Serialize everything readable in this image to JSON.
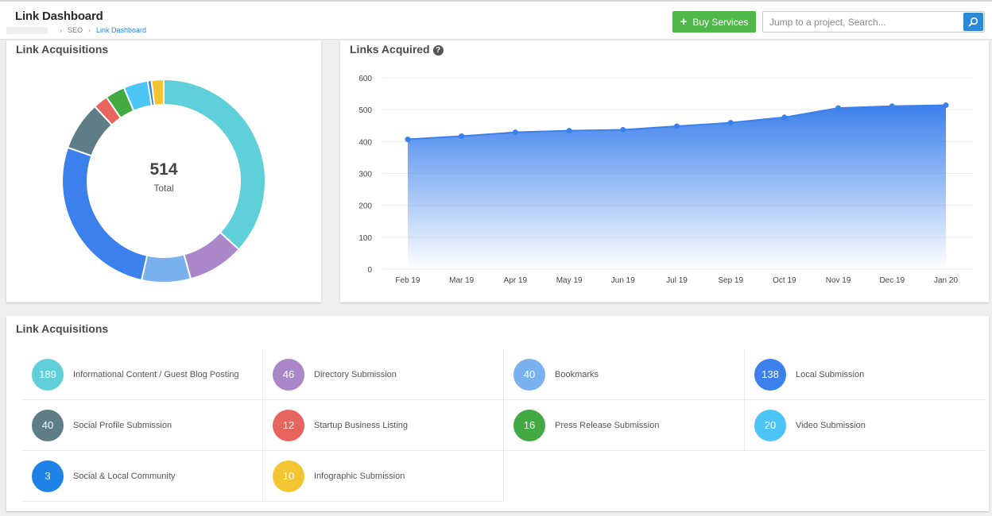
{
  "header": {
    "title": "Link Dashboard",
    "breadcrumb": [
      "SEO",
      "Link Dashboard"
    ],
    "buy_label": "Buy Services",
    "search_placeholder": "Jump to a project, Search..."
  },
  "donut_card": {
    "title": "Link Acquisitions",
    "total_value": "514",
    "total_label": "Total"
  },
  "line_card": {
    "title": "Links Acquired"
  },
  "legend_card": {
    "title": "Link Acquisitions",
    "items": [
      {
        "count": "189",
        "label": "Informational Content / Guest Blog Posting",
        "color": "#5fd0d9"
      },
      {
        "count": "46",
        "label": "Directory Submission",
        "color": "#ab86c8"
      },
      {
        "count": "40",
        "label": "Bookmarks",
        "color": "#79b2ee"
      },
      {
        "count": "138",
        "label": "Local Submission",
        "color": "#3b80ec"
      },
      {
        "count": "40",
        "label": "Social Profile Submission",
        "color": "#5f7d87"
      },
      {
        "count": "12",
        "label": "Startup Business Listing",
        "color": "#e8655f"
      },
      {
        "count": "16",
        "label": "Press Release Submission",
        "color": "#43a942"
      },
      {
        "count": "20",
        "label": "Video Submission",
        "color": "#4dc4f6"
      },
      {
        "count": "3",
        "label": "Social & Local Community",
        "color": "#1f82e6"
      },
      {
        "count": "10",
        "label": "Infographic Submission",
        "color": "#f4c533"
      }
    ]
  },
  "chart_data": [
    {
      "type": "pie",
      "title": "Link Acquisitions",
      "categories": [
        "Informational Content / Guest Blog Posting",
        "Directory Submission",
        "Bookmarks",
        "Local Submission",
        "Social Profile Submission",
        "Startup Business Listing",
        "Press Release Submission",
        "Video Submission",
        "Social & Local Community",
        "Infographic Submission"
      ],
      "values": [
        189,
        46,
        40,
        138,
        40,
        12,
        16,
        20,
        3,
        10
      ],
      "colors": [
        "#5fd0d9",
        "#ab86c8",
        "#79b2ee",
        "#3b80ec",
        "#5f7d87",
        "#e8655f",
        "#43a942",
        "#4dc4f6",
        "#1f82e6",
        "#f4c533"
      ],
      "total": 514,
      "donut": true
    },
    {
      "type": "area",
      "title": "Links Acquired",
      "x": [
        "Feb 19",
        "Mar 19",
        "Apr 19",
        "May 19",
        "Jun 19",
        "Jul 19",
        "Sep 19",
        "Oct 19",
        "Nov 19",
        "Dec 19",
        "Jan 20"
      ],
      "values": [
        407,
        417,
        429,
        434,
        437,
        448,
        459,
        476,
        505,
        511,
        514
      ],
      "ylim": [
        0,
        600
      ],
      "yticks": [
        0,
        100,
        200,
        300,
        400,
        500,
        600
      ],
      "grid": true,
      "color": "#3b80ec"
    }
  ]
}
